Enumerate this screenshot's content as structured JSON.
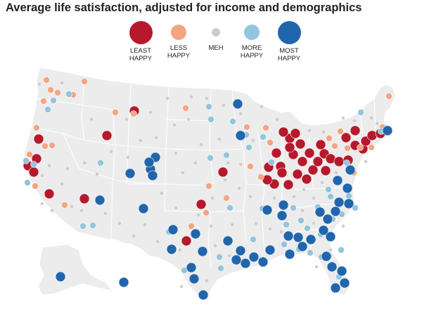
{
  "title": "Average life satisfaction, adjusted for income and demographics",
  "colors": {
    "least_happy": "#b5192b",
    "less_happy": "#f4a582",
    "meh": "#cccccc",
    "more_happy": "#92c5de",
    "most_happy": "#2166ac",
    "land": "#ececec",
    "border": "#ffffff",
    "state_line": "#ffffff"
  },
  "legend": [
    {
      "key": "least_happy",
      "line1": "LEAST",
      "line2": "HAPPY"
    },
    {
      "key": "less_happy",
      "line1": "LESS",
      "line2": "HAPPY"
    },
    {
      "key": "meh",
      "line1": "MEH",
      "line2": ""
    },
    {
      "key": "more_happy",
      "line1": "MORE",
      "line2": "HAPPY"
    },
    {
      "key": "most_happy",
      "line1": "MOST",
      "line2": "HAPPY"
    }
  ],
  "points": [
    [
      "least_happy",
      55,
      198
    ],
    [
      "least_happy",
      40,
      236
    ],
    [
      "least_happy",
      48,
      245
    ],
    [
      "least_happy",
      52,
      226
    ],
    [
      "least_happy",
      70,
      276
    ],
    [
      "least_happy",
      152,
      193
    ],
    [
      "least_happy",
      120,
      283
    ],
    [
      "least_happy",
      191,
      158
    ],
    [
      "least_happy",
      317,
      245
    ],
    [
      "least_happy",
      286,
      291
    ],
    [
      "least_happy",
      265,
      343
    ],
    [
      "least_happy",
      382,
      238
    ],
    [
      "least_happy",
      393,
      218
    ],
    [
      "least_happy",
      399,
      237
    ],
    [
      "least_happy",
      401,
      246
    ],
    [
      "least_happy",
      390,
      262
    ],
    [
      "least_happy",
      410,
      263
    ],
    [
      "least_happy",
      423,
      248
    ],
    [
      "least_happy",
      430,
      230
    ],
    [
      "least_happy",
      417,
      220
    ],
    [
      "least_happy",
      427,
      205
    ],
    [
      "least_happy",
      412,
      197
    ],
    [
      "least_happy",
      403,
      188
    ],
    [
      "least_happy",
      420,
      190
    ],
    [
      "least_happy",
      380,
      256
    ],
    [
      "least_happy",
      436,
      255
    ],
    [
      "least_happy",
      445,
      242
    ],
    [
      "least_happy",
      452,
      230
    ],
    [
      "least_happy",
      461,
      219
    ],
    [
      "least_happy",
      470,
      226
    ],
    [
      "least_happy",
      482,
      230
    ],
    [
      "least_happy",
      495,
      228
    ],
    [
      "least_happy",
      492,
      196
    ],
    [
      "least_happy",
      505,
      207
    ],
    [
      "least_happy",
      516,
      212
    ],
    [
      "least_happy",
      520,
      201
    ],
    [
      "least_happy",
      529,
      193
    ],
    [
      "least_happy",
      541,
      190
    ],
    [
      "least_happy",
      505,
      186
    ],
    [
      "least_happy",
      456,
      206
    ],
    [
      "least_happy",
      412,
      210
    ],
    [
      "least_happy",
      440,
      218
    ],
    [
      "least_happy",
      463,
      243
    ],
    [
      "less_happy",
      66,
      114
    ],
    [
      "less_happy",
      62,
      144
    ],
    [
      "less_happy",
      72,
      128
    ],
    [
      "less_happy",
      82,
      132
    ],
    [
      "less_happy",
      120,
      116
    ],
    [
      "less_happy",
      104,
      135
    ],
    [
      "less_happy",
      52,
      182
    ],
    [
      "less_happy",
      64,
      208
    ],
    [
      "less_happy",
      74,
      207
    ],
    [
      "less_happy",
      42,
      220
    ],
    [
      "less_happy",
      50,
      265
    ],
    [
      "less_happy",
      92,
      292
    ],
    [
      "less_happy",
      164,
      160
    ],
    [
      "less_happy",
      190,
      162
    ],
    [
      "less_happy",
      264,
      154
    ],
    [
      "less_happy",
      297,
      265
    ],
    [
      "less_happy",
      293,
      303
    ],
    [
      "less_happy",
      272,
      322
    ],
    [
      "less_happy",
      322,
      282
    ],
    [
      "less_happy",
      351,
      181
    ],
    [
      "less_happy",
      356,
      237
    ],
    [
      "less_happy",
      371,
      252
    ],
    [
      "less_happy",
      378,
      182
    ],
    [
      "less_happy",
      384,
      203
    ],
    [
      "less_happy",
      484,
      187
    ],
    [
      "less_happy",
      476,
      208
    ],
    [
      "less_happy",
      494,
      211
    ],
    [
      "less_happy",
      528,
      210
    ],
    [
      "less_happy",
      544,
      181
    ],
    [
      "less_happy",
      553,
      137
    ],
    [
      "less_happy",
      512,
      210
    ],
    [
      "less_happy",
      503,
      246
    ],
    [
      "less_happy",
      468,
      197
    ],
    [
      "more_happy",
      98,
      134
    ],
    [
      "more_happy",
      68,
      156
    ],
    [
      "more_happy",
      76,
      143
    ],
    [
      "more_happy",
      37,
      229
    ],
    [
      "more_happy",
      48,
      234
    ],
    [
      "more_happy",
      39,
      260
    ],
    [
      "more_happy",
      143,
      232
    ],
    [
      "more_happy",
      132,
      321
    ],
    [
      "more_happy",
      118,
      322
    ],
    [
      "more_happy",
      297,
      152
    ],
    [
      "more_happy",
      300,
      170
    ],
    [
      "more_happy",
      331,
      173
    ],
    [
      "more_happy",
      354,
      210
    ],
    [
      "more_happy",
      322,
      221
    ],
    [
      "more_happy",
      327,
      296
    ],
    [
      "more_happy",
      299,
      225
    ],
    [
      "more_happy",
      350,
      192
    ],
    [
      "more_happy",
      374,
      195
    ],
    [
      "more_happy",
      386,
      231
    ],
    [
      "more_happy",
      452,
      295
    ],
    [
      "more_happy",
      456,
      334
    ],
    [
      "more_happy",
      473,
      312
    ],
    [
      "more_happy",
      486,
      305
    ],
    [
      "more_happy",
      467,
      270
    ],
    [
      "more_happy",
      470,
      280
    ],
    [
      "more_happy",
      417,
      296
    ],
    [
      "more_happy",
      407,
      320
    ],
    [
      "more_happy",
      428,
      314
    ],
    [
      "more_happy",
      373,
      297
    ],
    [
      "more_happy",
      312,
      366
    ],
    [
      "more_happy",
      314,
      382
    ],
    [
      "more_happy",
      262,
      385
    ],
    [
      "more_happy",
      441,
      360
    ],
    [
      "more_happy",
      457,
      366
    ],
    [
      "more_happy",
      468,
      365
    ],
    [
      "more_happy",
      485,
      356
    ],
    [
      "more_happy",
      482,
      394
    ],
    [
      "more_happy",
      360,
      341
    ],
    [
      "more_happy",
      404,
      348
    ],
    [
      "more_happy",
      493,
      232
    ],
    [
      "more_happy",
      513,
      160
    ],
    [
      "more_happy",
      542,
      187
    ],
    [
      "more_happy",
      496,
      279
    ],
    [
      "more_happy",
      505,
      296
    ],
    [
      "more_happy",
      409,
      360
    ],
    [
      "more_happy",
      425,
      355
    ],
    [
      "more_happy",
      437,
      325
    ],
    [
      "more_happy",
      240,
      330
    ],
    [
      "most_happy",
      86,
      394
    ],
    [
      "most_happy",
      176,
      402
    ],
    [
      "most_happy",
      142,
      285
    ],
    [
      "most_happy",
      185,
      247
    ],
    [
      "most_happy",
      214,
      241
    ],
    [
      "most_happy",
      221,
      224
    ],
    [
      "most_happy",
      212,
      231
    ],
    [
      "most_happy",
      217,
      250
    ],
    [
      "most_happy",
      204,
      297
    ],
    [
      "most_happy",
      246,
      327
    ],
    [
      "most_happy",
      244,
      355
    ],
    [
      "most_happy",
      288,
      358
    ],
    [
      "most_happy",
      278,
      333
    ],
    [
      "most_happy",
      272,
      381
    ],
    [
      "most_happy",
      276,
      397
    ],
    [
      "most_happy",
      289,
      420
    ],
    [
      "most_happy",
      324,
      343
    ],
    [
      "most_happy",
      336,
      370
    ],
    [
      "most_happy",
      342,
      357
    ],
    [
      "most_happy",
      349,
      375
    ],
    [
      "most_happy",
      361,
      366
    ],
    [
      "most_happy",
      374,
      373
    ],
    [
      "most_happy",
      384,
      356
    ],
    [
      "most_happy",
      380,
      299
    ],
    [
      "most_happy",
      403,
      292
    ],
    [
      "most_happy",
      401,
      307
    ],
    [
      "most_happy",
      424,
      338
    ],
    [
      "most_happy",
      412,
      362
    ],
    [
      "most_happy",
      410,
      336
    ],
    [
      "most_happy",
      430,
      351
    ],
    [
      "most_happy",
      442,
      341
    ],
    [
      "most_happy",
      460,
      328
    ],
    [
      "most_happy",
      470,
      337
    ],
    [
      "most_happy",
      466,
      312
    ],
    [
      "most_happy",
      477,
      301
    ],
    [
      "most_happy",
      482,
      288
    ],
    [
      "most_happy",
      496,
      290
    ],
    [
      "most_happy",
      494,
      268
    ],
    [
      "most_happy",
      480,
      257
    ],
    [
      "most_happy",
      464,
      365
    ],
    [
      "most_happy",
      472,
      380
    ],
    [
      "most_happy",
      486,
      386
    ],
    [
      "most_happy",
      477,
      410
    ],
    [
      "most_happy",
      490,
      403
    ],
    [
      "most_happy",
      338,
      148
    ],
    [
      "most_happy",
      342,
      193
    ],
    [
      "most_happy",
      498,
      242
    ],
    [
      "most_happy",
      551,
      186
    ],
    [
      "most_happy",
      455,
      302
    ]
  ]
}
